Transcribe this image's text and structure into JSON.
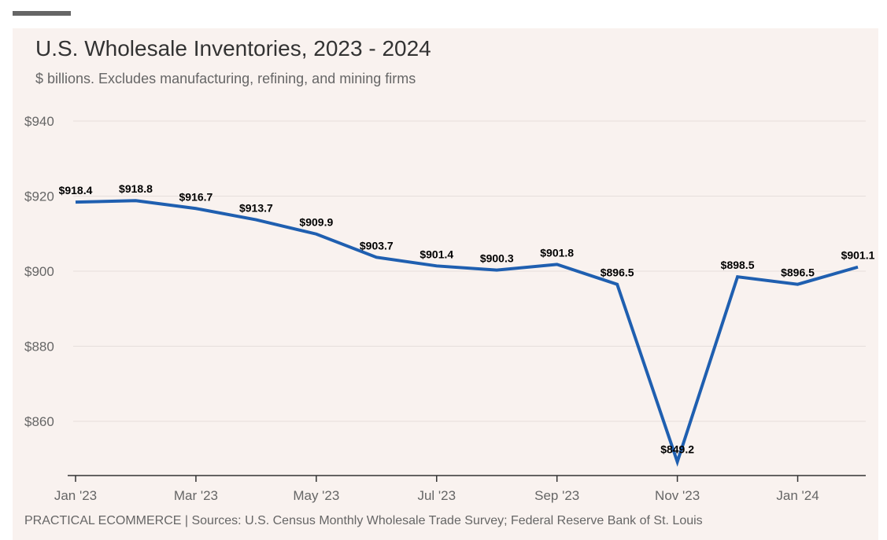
{
  "chart_data": {
    "type": "line",
    "title": "U.S. Wholesale Inventories, 2023 - 2024",
    "subtitle": "$ billions. Excludes manufacturing, refining, and mining firms",
    "source": "PRACTICAL ECOMMERCE | Sources: U.S. Census Monthly Wholesale Trade Survey; Federal Reserve Bank of St. Louis",
    "x": [
      "Jan 2023",
      "Feb 2023",
      "Mar 2023",
      "Apr 2023",
      "May 2023",
      "Jun 2023",
      "Jul 2023",
      "Aug 2023",
      "Sep 2023",
      "Oct 2023",
      "Nov 2023",
      "Dec 2023",
      "Jan 2024",
      "Feb 2024"
    ],
    "x_tick_labels": [
      "Jan '23",
      "Mar '23",
      "May '23",
      "Jul '23",
      "Sep '23",
      "Nov '23",
      "Jan '24"
    ],
    "series": [
      {
        "values": [
          918.4,
          918.8,
          916.7,
          913.7,
          909.9,
          903.7,
          901.4,
          900.3,
          901.8,
          896.5,
          849.2,
          898.5,
          896.5,
          901.1
        ],
        "labels": [
          "$918.4",
          "$918.8",
          "$916.7",
          "$913.7",
          "$909.9",
          "$903.7",
          "$901.4",
          "$900.3",
          "$901.8",
          "$896.5",
          "$849.2",
          "$898.5",
          "$896.5",
          "$901.1"
        ],
        "color": "#1f5fb0"
      }
    ],
    "y_tick_values": [
      860,
      880,
      900,
      920,
      940
    ],
    "y_tick_labels": [
      "$860",
      "$880",
      "$900",
      "$920",
      "$940"
    ],
    "ylim": [
      846,
      940
    ],
    "grid": true,
    "legend": "none"
  },
  "colors": {
    "background": "#f9f2ef",
    "line": "#1f5fb0",
    "grid": "#e6dedb",
    "axis": "#333333",
    "text_muted": "#666666"
  }
}
